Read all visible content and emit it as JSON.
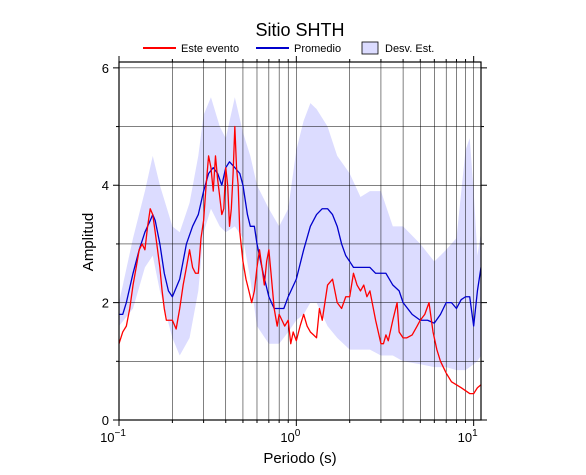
{
  "chart_data": {
    "type": "line",
    "title": "Sitio SHTH",
    "xlabel": "Periodo (s)",
    "ylabel": "Amplitud",
    "xscale": "log",
    "xlim": [
      0.1,
      11
    ],
    "ylim": [
      0,
      6.1
    ],
    "grid": true,
    "legend_position": "top",
    "x_tick_values": [
      0.1,
      1,
      10
    ],
    "x_tick_labels": [
      {
        "base": "10",
        "exp": "−1"
      },
      {
        "base": "10",
        "exp": "0"
      },
      {
        "base": "10",
        "exp": "1"
      }
    ],
    "y_ticks": [
      0,
      2,
      4,
      6
    ],
    "legend": [
      {
        "label": "Este evento",
        "kind": "line",
        "color": "#ff0000"
      },
      {
        "label": "Promedio",
        "kind": "line",
        "color": "#0000cc"
      },
      {
        "label": "Desv. Est.",
        "kind": "box",
        "color": "#dcdcff"
      }
    ],
    "band": {
      "name": "Desv. Est.",
      "color": "#dcdcff",
      "x": [
        0.1,
        0.12,
        0.14,
        0.155,
        0.17,
        0.2,
        0.22,
        0.25,
        0.28,
        0.3,
        0.33,
        0.37,
        0.4,
        0.45,
        0.5,
        0.55,
        0.6,
        0.7,
        0.8,
        0.9,
        1.0,
        1.1,
        1.2,
        1.3,
        1.5,
        1.7,
        2.0,
        2.3,
        2.6,
        3.0,
        3.5,
        4.0,
        5.0,
        6.0,
        7.0,
        8.0,
        9.0,
        9.5,
        10.0,
        10.5,
        11.0
      ],
      "upper": [
        2.0,
        3.1,
        3.9,
        4.5,
        4.0,
        3.3,
        3.2,
        3.7,
        4.5,
        5.2,
        5.5,
        5.0,
        4.8,
        5.5,
        4.9,
        4.5,
        4.0,
        3.6,
        3.3,
        3.6,
        4.6,
        5.1,
        5.4,
        5.3,
        5.0,
        4.5,
        4.2,
        3.8,
        3.9,
        3.9,
        3.3,
        3.3,
        3.0,
        2.7,
        2.9,
        3.1,
        4.6,
        4.8,
        3.9,
        2.8,
        3.2
      ],
      "lower": [
        1.6,
        1.9,
        2.6,
        2.8,
        2.2,
        1.4,
        1.1,
        1.4,
        2.2,
        3.2,
        3.6,
        3.3,
        3.2,
        3.3,
        3.1,
        2.4,
        1.6,
        1.3,
        1.3,
        1.5,
        1.7,
        1.8,
        2.0,
        2.0,
        1.6,
        1.4,
        1.2,
        1.2,
        1.2,
        1.1,
        1.1,
        1.0,
        0.95,
        0.9,
        0.9,
        0.85,
        0.85,
        0.9,
        0.95,
        1.0,
        1.1
      ]
    },
    "series": [
      {
        "name": "Promedio",
        "color": "#0000cc",
        "x": [
          0.1,
          0.105,
          0.11,
          0.12,
          0.13,
          0.14,
          0.15,
          0.155,
          0.16,
          0.17,
          0.18,
          0.19,
          0.2,
          0.22,
          0.24,
          0.26,
          0.28,
          0.3,
          0.32,
          0.34,
          0.36,
          0.38,
          0.4,
          0.42,
          0.45,
          0.48,
          0.5,
          0.53,
          0.55,
          0.58,
          0.6,
          0.65,
          0.7,
          0.75,
          0.8,
          0.85,
          0.9,
          1.0,
          1.1,
          1.2,
          1.3,
          1.4,
          1.5,
          1.6,
          1.7,
          1.8,
          1.9,
          2.0,
          2.1,
          2.2,
          2.4,
          2.6,
          2.8,
          3.0,
          3.2,
          3.5,
          3.8,
          4.0,
          4.5,
          5.0,
          5.5,
          6.0,
          6.5,
          7.0,
          7.5,
          8.0,
          8.5,
          9.0,
          9.5,
          10.0,
          10.5,
          11.0
        ],
        "y": [
          1.8,
          1.8,
          2.0,
          2.5,
          2.9,
          3.2,
          3.4,
          3.5,
          3.4,
          3.0,
          2.5,
          2.2,
          2.1,
          2.4,
          3.0,
          3.3,
          3.5,
          3.9,
          4.2,
          4.3,
          4.2,
          4.0,
          4.3,
          4.4,
          4.3,
          4.2,
          4.0,
          3.5,
          3.3,
          3.3,
          3.0,
          2.5,
          2.1,
          1.9,
          1.9,
          1.9,
          2.1,
          2.4,
          2.9,
          3.3,
          3.5,
          3.6,
          3.6,
          3.5,
          3.3,
          3.0,
          2.8,
          2.7,
          2.6,
          2.6,
          2.6,
          2.6,
          2.5,
          2.5,
          2.5,
          2.3,
          2.2,
          2.0,
          1.8,
          1.7,
          1.7,
          1.65,
          1.8,
          2.0,
          2.0,
          1.9,
          2.05,
          2.1,
          2.1,
          1.6,
          2.2,
          2.6
        ]
      },
      {
        "name": "Este evento",
        "color": "#ff0000",
        "x": [
          0.1,
          0.105,
          0.11,
          0.115,
          0.12,
          0.125,
          0.13,
          0.135,
          0.14,
          0.145,
          0.15,
          0.155,
          0.16,
          0.165,
          0.17,
          0.175,
          0.18,
          0.185,
          0.19,
          0.2,
          0.21,
          0.22,
          0.23,
          0.24,
          0.25,
          0.26,
          0.27,
          0.28,
          0.29,
          0.3,
          0.31,
          0.32,
          0.33,
          0.34,
          0.35,
          0.36,
          0.37,
          0.38,
          0.39,
          0.4,
          0.41,
          0.42,
          0.43,
          0.44,
          0.45,
          0.46,
          0.47,
          0.48,
          0.5,
          0.52,
          0.54,
          0.56,
          0.58,
          0.6,
          0.62,
          0.64,
          0.66,
          0.68,
          0.7,
          0.72,
          0.75,
          0.78,
          0.8,
          0.83,
          0.86,
          0.9,
          0.93,
          0.96,
          1.0,
          1.05,
          1.1,
          1.15,
          1.2,
          1.25,
          1.3,
          1.35,
          1.4,
          1.5,
          1.6,
          1.7,
          1.8,
          1.9,
          2.0,
          2.1,
          2.2,
          2.3,
          2.4,
          2.5,
          2.6,
          2.8,
          3.0,
          3.1,
          3.2,
          3.3,
          3.5,
          3.7,
          3.8,
          4.0,
          4.2,
          4.5,
          4.8,
          5.0,
          5.3,
          5.6,
          5.9,
          6.2,
          6.5,
          7.0,
          7.5,
          8.0,
          8.5,
          9.0,
          9.5,
          10.0,
          10.5,
          11.0
        ],
        "y": [
          1.3,
          1.5,
          1.6,
          1.9,
          2.3,
          2.6,
          2.9,
          3.0,
          2.9,
          3.3,
          3.6,
          3.5,
          3.2,
          2.9,
          2.6,
          2.2,
          1.9,
          1.7,
          1.7,
          1.7,
          1.55,
          1.9,
          2.3,
          2.6,
          2.9,
          2.6,
          2.5,
          2.5,
          3.1,
          3.4,
          4.0,
          4.5,
          4.3,
          3.9,
          4.5,
          4.1,
          3.8,
          3.5,
          3.6,
          4.3,
          4.0,
          3.3,
          3.6,
          4.2,
          5.0,
          4.3,
          4.0,
          3.2,
          2.7,
          2.4,
          2.2,
          2.0,
          2.2,
          2.6,
          2.9,
          2.6,
          2.3,
          2.7,
          2.9,
          2.5,
          1.9,
          1.6,
          1.8,
          1.7,
          1.6,
          1.7,
          1.3,
          1.5,
          1.35,
          1.6,
          1.8,
          1.6,
          1.5,
          1.45,
          1.4,
          1.9,
          1.7,
          2.3,
          2.4,
          2.0,
          1.9,
          2.1,
          2.1,
          2.5,
          2.3,
          2.2,
          2.3,
          2.1,
          2.2,
          1.7,
          1.3,
          1.3,
          1.45,
          1.35,
          1.7,
          2.0,
          1.5,
          1.4,
          1.4,
          1.45,
          1.6,
          1.7,
          1.8,
          2.0,
          1.5,
          1.2,
          1.0,
          0.8,
          0.65,
          0.6,
          0.55,
          0.5,
          0.45,
          0.45,
          0.55,
          0.6
        ]
      }
    ]
  }
}
